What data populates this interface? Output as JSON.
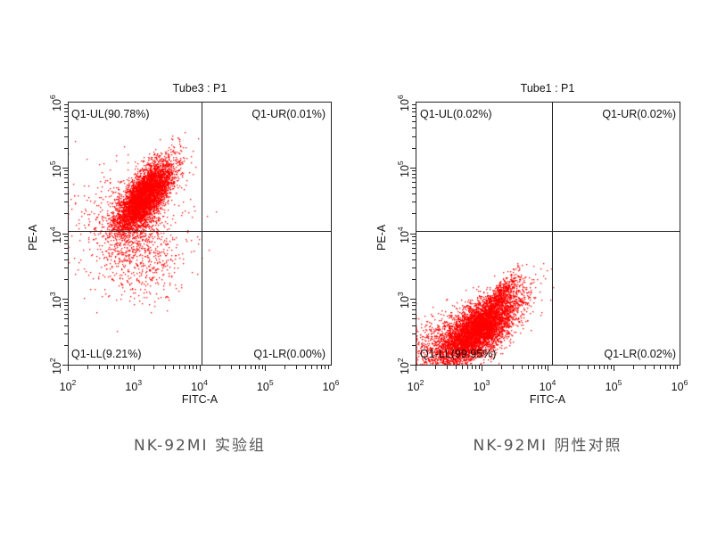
{
  "chart_data": [
    {
      "type": "scatter",
      "title": "Tube3 : P1",
      "caption": "NK-92MI 实验组",
      "xlabel": "FITC-A",
      "ylabel": "PE-A",
      "xscale": "log",
      "yscale": "log",
      "xlim": [
        100,
        1000000
      ],
      "ylim": [
        100,
        1000000
      ],
      "xticks": [
        "10^2",
        "10^3",
        "10^4",
        "10^5",
        "10^6"
      ],
      "yticks": [
        "10^2",
        "10^3",
        "10^4",
        "10^5",
        "10^6"
      ],
      "grid": false,
      "point_color": "#FF0000",
      "quadrant_gate": {
        "x": 11500,
        "y": 10000
      },
      "quadrants": [
        {
          "id": "Q1-UL",
          "label": "Q1-UL(90.78%)",
          "percent": 90.78
        },
        {
          "id": "Q1-UR",
          "label": "Q1-UR(0.01%)",
          "percent": 0.01
        },
        {
          "id": "Q1-LL",
          "label": "Q1-LL(9.21%)",
          "percent": 9.21
        },
        {
          "id": "Q1-LR",
          "label": "Q1-LR(0.00%)",
          "percent": 0.0
        }
      ],
      "populations": [
        {
          "n": 5200,
          "cx_log": 3.15,
          "cy_log": 4.55,
          "sx": 0.22,
          "sy": 0.28,
          "rho": 0.72
        },
        {
          "n": 700,
          "cx_log": 3.1,
          "cy_log": 3.7,
          "sx": 0.35,
          "sy": 0.35,
          "rho": 0.2
        },
        {
          "n": 220,
          "cx_log": 2.7,
          "cy_log": 4.4,
          "sx": 0.4,
          "sy": 0.35,
          "rho": 0.1
        }
      ]
    },
    {
      "type": "scatter",
      "title": "Tube1 : P1",
      "caption": "NK-92MI 阴性对照",
      "xlabel": "FITC-A",
      "ylabel": "PE-A",
      "xscale": "log",
      "yscale": "log",
      "xlim": [
        100,
        1000000
      ],
      "ylim": [
        100,
        1000000
      ],
      "xticks": [
        "10^2",
        "10^3",
        "10^4",
        "10^5",
        "10^6"
      ],
      "yticks": [
        "10^2",
        "10^3",
        "10^4",
        "10^5",
        "10^6"
      ],
      "grid": false,
      "point_color": "#FF0000",
      "quadrant_gate": {
        "x": 11500,
        "y": 10000
      },
      "quadrants": [
        {
          "id": "Q1-UL",
          "label": "Q1-UL(0.02%)",
          "percent": 0.02
        },
        {
          "id": "Q1-UR",
          "label": "Q1-UR(0.02%)",
          "percent": 0.02
        },
        {
          "id": "Q1-LL",
          "label": "Q1-LL(99.95%)",
          "percent": 99.95
        },
        {
          "id": "Q1-LR",
          "label": "Q1-LR(0.02%)",
          "percent": 0.02
        }
      ],
      "populations": [
        {
          "n": 6000,
          "cx_log": 2.95,
          "cy_log": 2.55,
          "sx": 0.3,
          "sy": 0.28,
          "rho": 0.7
        },
        {
          "n": 900,
          "cx_log": 2.5,
          "cy_log": 2.35,
          "sx": 0.35,
          "sy": 0.25,
          "rho": 0.3
        },
        {
          "n": 350,
          "cx_log": 3.3,
          "cy_log": 3.1,
          "sx": 0.12,
          "sy": 0.15,
          "rho": 0.85
        }
      ]
    }
  ],
  "panels": [
    {
      "title": "Tube3 : P1",
      "caption": "NK-92MI 实验组",
      "xlabel": "FITC-A",
      "ylabel": "PE-A",
      "q_ul": "Q1-UL(90.78%)",
      "q_ur": "Q1-UR(0.01%)",
      "q_ll": "Q1-LL(9.21%)",
      "q_lr": "Q1-LR(0.00%)"
    },
    {
      "title": "Tube1 : P1",
      "caption": "NK-92MI 阴性对照",
      "xlabel": "FITC-A",
      "ylabel": "PE-A",
      "q_ul": "Q1-UL(0.02%)",
      "q_ur": "Q1-UR(0.02%)",
      "q_ll": "Q1-LL(99.95%)",
      "q_lr": "Q1-LR(0.02%)"
    }
  ],
  "tick_base": "10",
  "tick_exponents": [
    "2",
    "3",
    "4",
    "5",
    "6"
  ]
}
